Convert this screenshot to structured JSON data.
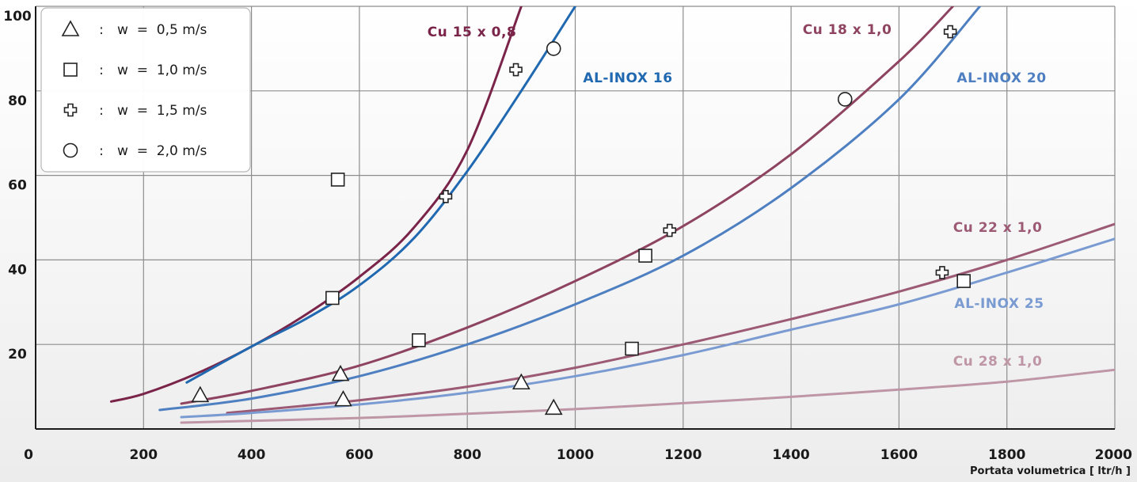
{
  "chart_data": {
    "type": "line",
    "xlabel": "Portata volumetrica [ ltr/h ]",
    "xlim": [
      0,
      2000
    ],
    "ylim": [
      0,
      100
    ],
    "x_ticks": [
      "0",
      "200",
      "400",
      "600",
      "800",
      "1000",
      "1200",
      "1400",
      "1600",
      "1800",
      "2000"
    ],
    "y_ticks": [
      "20",
      "40",
      "60",
      "80",
      "100"
    ],
    "grid": true,
    "legend": {
      "placement": "top-left",
      "entries": [
        {
          "marker": "triangle",
          "label": "w  =  0,5 m/s"
        },
        {
          "marker": "square",
          "label": "w  =  1,0 m/s"
        },
        {
          "marker": "cross",
          "label": "w  =  1,5 m/s"
        },
        {
          "marker": "circle",
          "label": "w  =  2,0 m/s"
        }
      ]
    },
    "series": [
      {
        "name": "Cu 15 x 0,8",
        "color": "#7a2449",
        "x": [
          140,
          200,
          300,
          400,
          500,
          600,
          700,
          800,
          900
        ],
        "y": [
          6.5,
          8.3,
          13.2,
          19.5,
          27,
          36,
          47.5,
          66,
          100
        ],
        "markers": [
          {
            "type": "square",
            "x": 560,
            "y": 59
          },
          {
            "type": "cross",
            "x": 890,
            "y": 85
          }
        ]
      },
      {
        "name": "AL-INOX 16",
        "color": "#2069b1",
        "x": [
          280,
          400,
          500,
          600,
          700,
          800,
          900,
          1000
        ],
        "y": [
          11,
          19.5,
          26,
          34,
          45,
          61,
          80,
          100
        ],
        "markers": [
          {
            "type": "square",
            "x": 550,
            "y": 31
          },
          {
            "type": "cross",
            "x": 760,
            "y": 55
          },
          {
            "type": "circle",
            "x": 960,
            "y": 90
          }
        ]
      },
      {
        "name": "Cu 18 x 1,0",
        "color": "#8e4460",
        "x": [
          270,
          400,
          600,
          800,
          1000,
          1200,
          1400,
          1600,
          1700
        ],
        "y": [
          6,
          9,
          15,
          24,
          35,
          48,
          65,
          87,
          100
        ],
        "markers": [
          {
            "type": "triangle",
            "x": 305,
            "y": 8
          },
          {
            "type": "square",
            "x": 710,
            "y": 21
          },
          {
            "type": "cross",
            "x": 1175,
            "y": 47
          },
          {
            "type": "circle",
            "x": 1500,
            "y": 78
          }
        ]
      },
      {
        "name": "AL-INOX 20",
        "color": "#4e7fc1",
        "x": [
          230,
          400,
          600,
          800,
          1000,
          1200,
          1400,
          1600,
          1750
        ],
        "y": [
          4.5,
          7.2,
          12.5,
          20,
          29.5,
          41,
          57,
          78,
          100
        ],
        "markers": [
          {
            "type": "triangle",
            "x": 565,
            "y": 13
          },
          {
            "type": "square",
            "x": 1130,
            "y": 41
          },
          {
            "type": "cross",
            "x": 1695,
            "y": 94
          }
        ]
      },
      {
        "name": "Cu 22 x 1,0",
        "color": "#9c5a74",
        "x": [
          355,
          600,
          800,
          1000,
          1200,
          1400,
          1600,
          1800,
          2000
        ],
        "y": [
          3.8,
          6.8,
          10,
          14.5,
          20,
          26,
          32.5,
          40,
          48.5
        ],
        "markers": [
          {
            "type": "triangle",
            "x": 570,
            "y": 7
          },
          {
            "type": "square",
            "x": 1105,
            "y": 19
          },
          {
            "type": "cross",
            "x": 1680,
            "y": 37
          }
        ]
      },
      {
        "name": "AL-INOX 25",
        "color": "#7a9bd2",
        "x": [
          270,
          400,
          600,
          800,
          1000,
          1200,
          1400,
          1600,
          1800,
          2000
        ],
        "y": [
          2.8,
          3.8,
          5.8,
          8.6,
          12.5,
          17.5,
          23.5,
          29.5,
          37,
          45
        ],
        "markers": [
          {
            "type": "triangle",
            "x": 900,
            "y": 11
          },
          {
            "type": "square",
            "x": 1720,
            "y": 35
          }
        ]
      },
      {
        "name": "Cu 28 x 1,0",
        "color": "#bf96a6",
        "x": [
          270,
          600,
          800,
          1000,
          1200,
          1400,
          1600,
          1800,
          2000
        ],
        "y": [
          1.5,
          2.6,
          3.6,
          4.7,
          6.1,
          7.6,
          9.3,
          11.2,
          14
        ],
        "markers": [
          {
            "type": "triangle",
            "x": 960,
            "y": 5
          }
        ]
      }
    ]
  },
  "series_labels": [
    {
      "text": "Cu 15 x 0,8",
      "color": "#7a2449"
    },
    {
      "text": "AL-INOX 16",
      "color": "#2069b1"
    },
    {
      "text": "Cu 18 x 1,0",
      "color": "#8e4460"
    },
    {
      "text": "AL-INOX 20",
      "color": "#4e7fc1"
    },
    {
      "text": "Cu 22 x 1,0",
      "color": "#9c5a74"
    },
    {
      "text": "AL-INOX 25",
      "color": "#7a9bd2"
    },
    {
      "text": "Cu 28 x 1,0",
      "color": "#bf96a6"
    }
  ],
  "colors": {
    "grid": "#8d8d8d",
    "marker_stroke": "#222222",
    "marker_fill": "#ffffff"
  }
}
